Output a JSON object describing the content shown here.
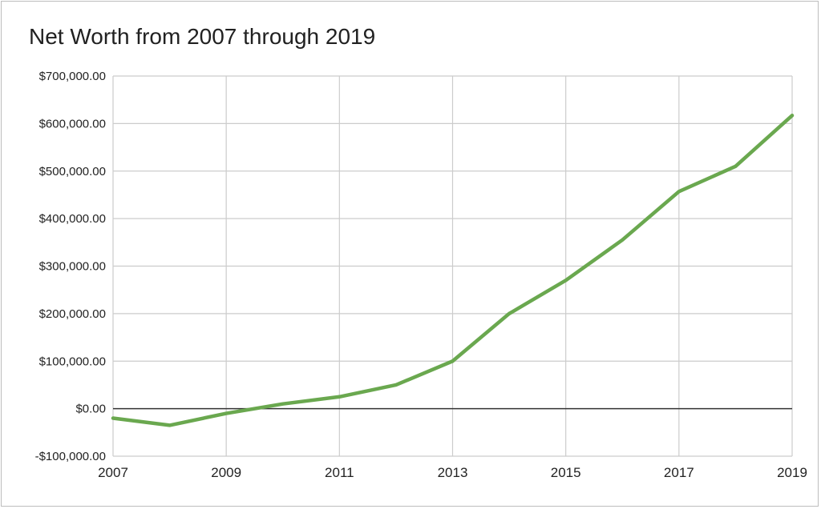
{
  "chart_data": {
    "type": "line",
    "title": "Net Worth from 2007 through 2019",
    "xlabel": "",
    "ylabel": "",
    "x": [
      2007,
      2008,
      2009,
      2010,
      2011,
      2012,
      2013,
      2014,
      2015,
      2016,
      2017,
      2018,
      2019
    ],
    "series": [
      {
        "values": [
          -20000,
          -35000,
          -10000,
          10000,
          25000,
          50000,
          100000,
          200000,
          270000,
          355000,
          457000,
          510000,
          617000
        ]
      }
    ],
    "ylim": [
      -100000,
      700000
    ],
    "xlim": [
      2007,
      2019
    ],
    "yticks": [
      700000,
      600000,
      500000,
      400000,
      300000,
      200000,
      100000,
      0,
      -100000
    ],
    "ytick_labels": [
      "$700,000.00",
      "$600,000.00",
      "$500,000.00",
      "$400,000.00",
      "$300,000.00",
      "$200,000.00",
      "$100,000.00",
      "$0.00",
      "-$100,000.00"
    ],
    "xticks": [
      2007,
      2009,
      2011,
      2013,
      2015,
      2017,
      2019
    ],
    "xtick_labels": [
      "2007",
      "2009",
      "2011",
      "2013",
      "2015",
      "2017",
      "2019"
    ],
    "grid": true,
    "line_color": "#6aa84f"
  }
}
